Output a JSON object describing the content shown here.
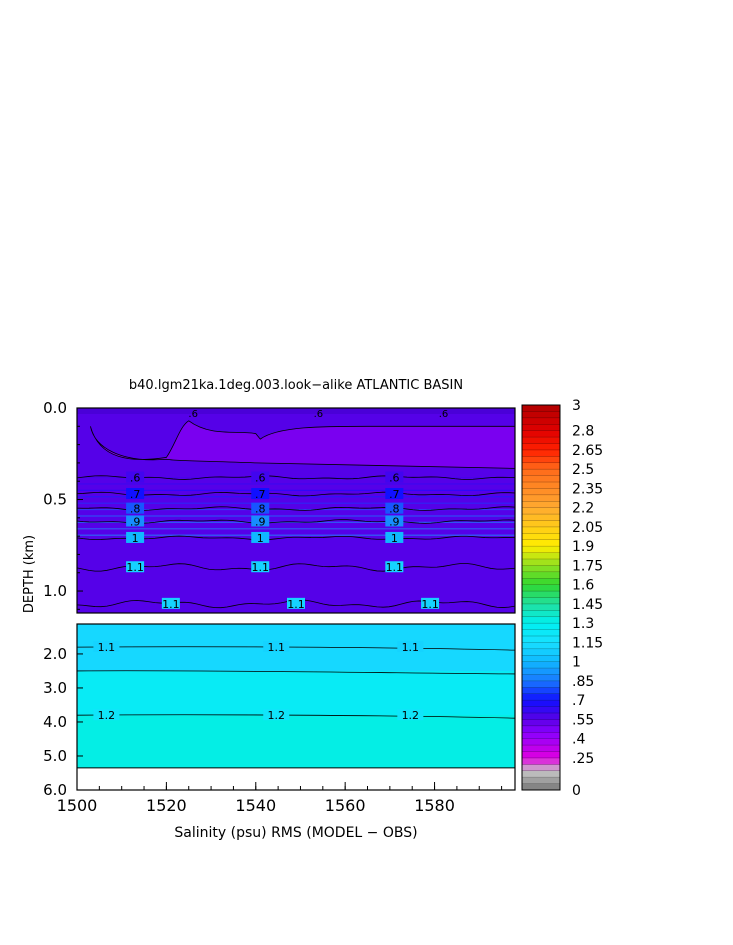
{
  "chart_data": {
    "type": "heatmap",
    "title": "b40.lgm21ka.1deg.003.look−alike ATLANTIC BASIN",
    "xlabel": "Salinity (psu) RMS (MODEL − OBS)",
    "ylabel": "DEPTH (km)",
    "xlim": [
      1500,
      1598
    ],
    "x_ticks": [
      {
        "value": 1500,
        "label": "1500"
      },
      {
        "value": 1520,
        "label": "1520"
      },
      {
        "value": 1540,
        "label": "1540"
      },
      {
        "value": 1560,
        "label": "1560"
      },
      {
        "value": 1580,
        "label": "1580"
      }
    ],
    "upper_panel": {
      "ylim": [
        0,
        1.12
      ],
      "y_ticks": [
        {
          "value": 0.0,
          "label": "0.0"
        },
        {
          "value": 0.5,
          "label": "0.5"
        },
        {
          "value": 1.0,
          "label": "1.0"
        }
      ]
    },
    "lower_panel": {
      "ylim": [
        1.12,
        6.0
      ],
      "y_ticks": [
        {
          "value": 2.0,
          "label": "2.0"
        },
        {
          "value": 3.0,
          "label": "3.0"
        },
        {
          "value": 4.0,
          "label": "4.0"
        },
        {
          "value": 5.0,
          "label": "5.0"
        },
        {
          "value": 6.0,
          "label": "6.0"
        }
      ],
      "seafloor_depth": 5.35
    },
    "contour_levels_upper": [
      {
        "value": 0.6,
        "depth": 0.38,
        "label": ".6"
      },
      {
        "value": 0.7,
        "depth": 0.47,
        "label": ".7"
      },
      {
        "value": 0.8,
        "depth": 0.55,
        "label": ".8"
      },
      {
        "value": 0.9,
        "depth": 0.62,
        "label": ".9"
      },
      {
        "value": 1.0,
        "depth": 0.71,
        "label": "1"
      },
      {
        "value": 1.1,
        "depth": 0.87,
        "label": "1.1"
      },
      {
        "value": 1.1,
        "depth": 1.07,
        "label": "1.1"
      }
    ],
    "contour_levels_lower": [
      {
        "value": 1.1,
        "depth": 1.8,
        "label": "1.1"
      },
      {
        "value": 1.2,
        "depth": 3.8,
        "label": "1.2"
      }
    ],
    "surface_min_label": ".6",
    "colorbar": {
      "range": [
        0,
        3
      ],
      "labels": [
        {
          "value": 3,
          "label": "3"
        },
        {
          "value": 2.8,
          "label": "2.8"
        },
        {
          "value": 2.65,
          "label": "2.65"
        },
        {
          "value": 2.5,
          "label": "2.5"
        },
        {
          "value": 2.35,
          "label": "2.35"
        },
        {
          "value": 2.2,
          "label": "2.2"
        },
        {
          "value": 2.05,
          "label": "2.05"
        },
        {
          "value": 1.9,
          "label": "1.9"
        },
        {
          "value": 1.75,
          "label": "1.75"
        },
        {
          "value": 1.6,
          "label": "1.6"
        },
        {
          "value": 1.45,
          "label": "1.45"
        },
        {
          "value": 1.3,
          "label": "1.3"
        },
        {
          "value": 1.15,
          "label": "1.15"
        },
        {
          "value": 1,
          "label": "1"
        },
        {
          "value": 0.85,
          "label": ".85"
        },
        {
          "value": 0.7,
          "label": ".7"
        },
        {
          "value": 0.55,
          "label": ".55"
        },
        {
          "value": 0.4,
          "label": ".4"
        },
        {
          "value": 0.25,
          "label": ".25"
        },
        {
          "value": 0,
          "label": "0"
        }
      ]
    }
  }
}
